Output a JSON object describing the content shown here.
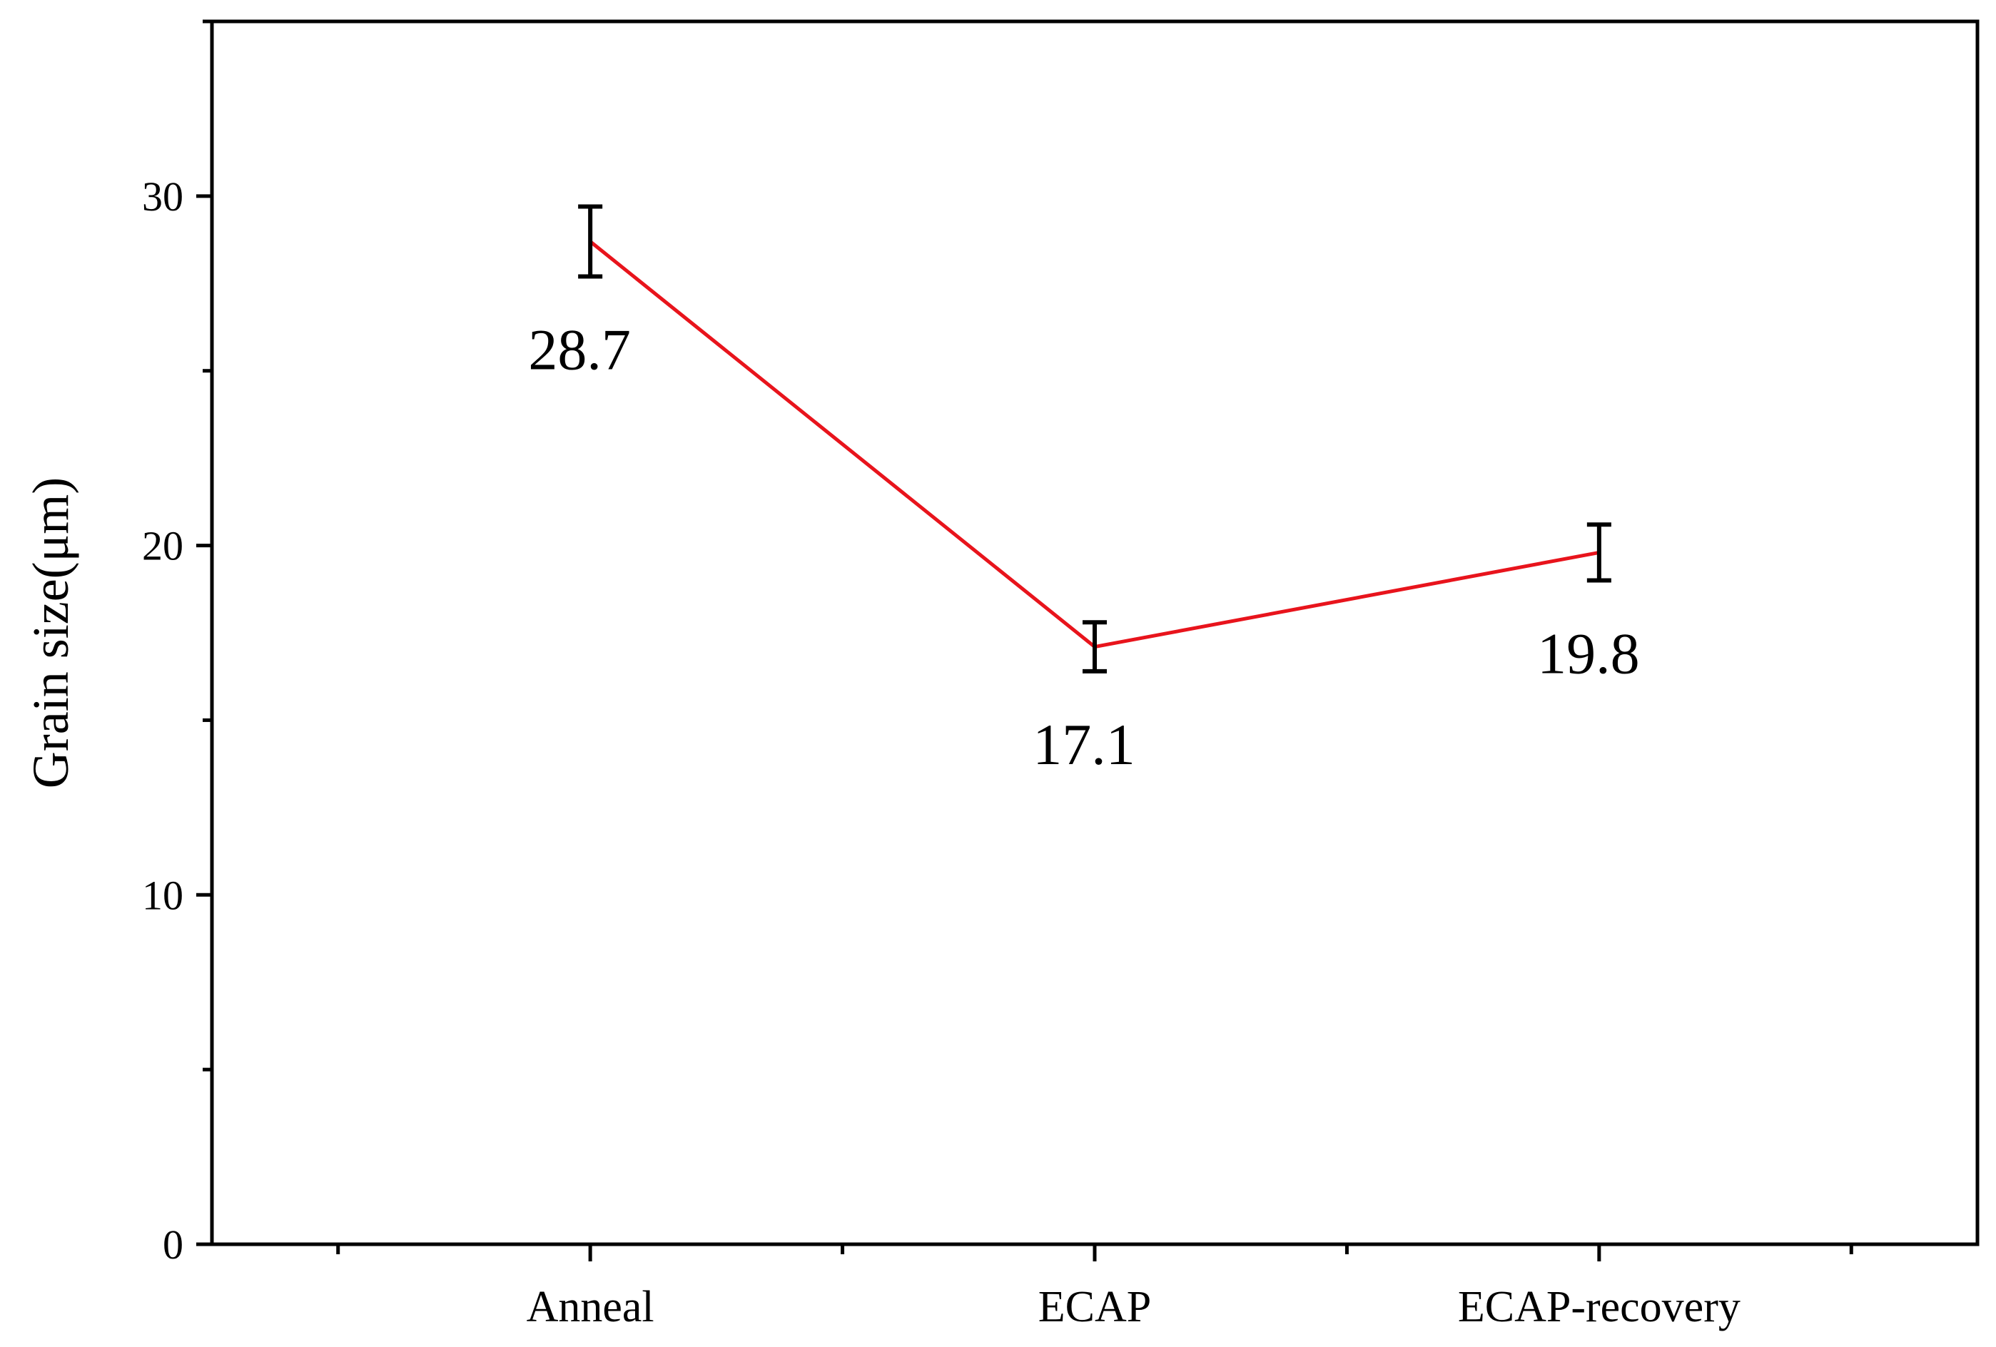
{
  "chart_data": {
    "type": "line",
    "title": "",
    "xlabel": "",
    "ylabel": "Grain size(μm)",
    "categories": [
      "Anneal",
      "ECAP",
      "ECAP-recovery"
    ],
    "series": [
      {
        "values": [
          28.7,
          17.1,
          19.8
        ],
        "errors": [
          1.0,
          0.7,
          0.8
        ],
        "labels": [
          "28.7",
          "17.1",
          "19.8"
        ],
        "color": "#e8141c"
      }
    ],
    "ylim": [
      0,
      35
    ],
    "yticks": [
      0,
      10,
      20,
      30
    ],
    "grid": false,
    "legend": "none"
  }
}
